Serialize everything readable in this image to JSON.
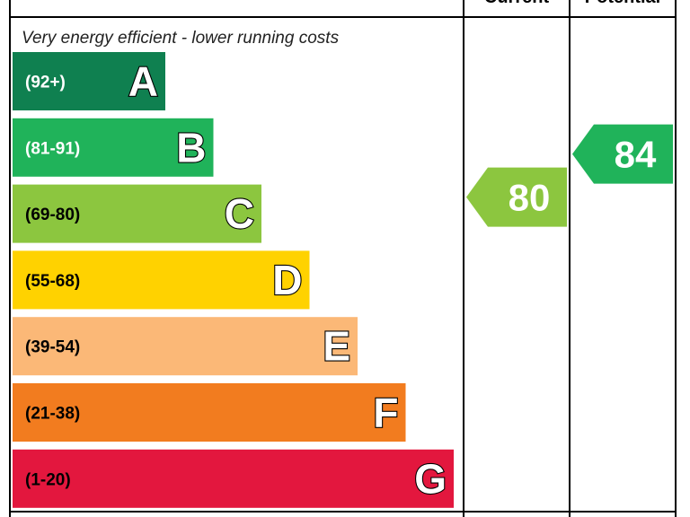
{
  "chart_data": {
    "type": "bar",
    "top_note": "Very energy efficient - lower running costs",
    "columns": {
      "current": "Current",
      "potential": "Potential"
    },
    "bands": [
      {
        "letter": "A",
        "range": "(92+)",
        "min": 92,
        "max": 100,
        "color": "#0f8050",
        "range_color": "#ffffff",
        "letter_color": "#ffffff"
      },
      {
        "letter": "B",
        "range": "(81-91)",
        "min": 81,
        "max": 91,
        "color": "#20b35a",
        "range_color": "#ffffff",
        "letter_color": "#ffffff"
      },
      {
        "letter": "C",
        "range": "(69-80)",
        "min": 69,
        "max": 80,
        "color": "#8cc63f",
        "range_color": "#000000",
        "letter_color": "#ffffff"
      },
      {
        "letter": "D",
        "range": "(55-68)",
        "min": 55,
        "max": 68,
        "color": "#ffd200",
        "range_color": "#000000",
        "letter_color": "#ffffff"
      },
      {
        "letter": "E",
        "range": "(39-54)",
        "min": 39,
        "max": 54,
        "color": "#fbb877",
        "range_color": "#000000",
        "letter_color": "#ffffff"
      },
      {
        "letter": "F",
        "range": "(21-38)",
        "min": 21,
        "max": 38,
        "color": "#f27c1f",
        "range_color": "#000000",
        "letter_color": "#ffffff"
      },
      {
        "letter": "G",
        "range": "(1-20)",
        "min": 1,
        "max": 20,
        "color": "#e3173e",
        "range_color": "#000000",
        "letter_color": "#ffffff"
      }
    ],
    "current": {
      "value": 80,
      "band": "C",
      "color": "#8cc63f"
    },
    "potential": {
      "value": 84,
      "band": "B",
      "color": "#20b35a"
    }
  }
}
